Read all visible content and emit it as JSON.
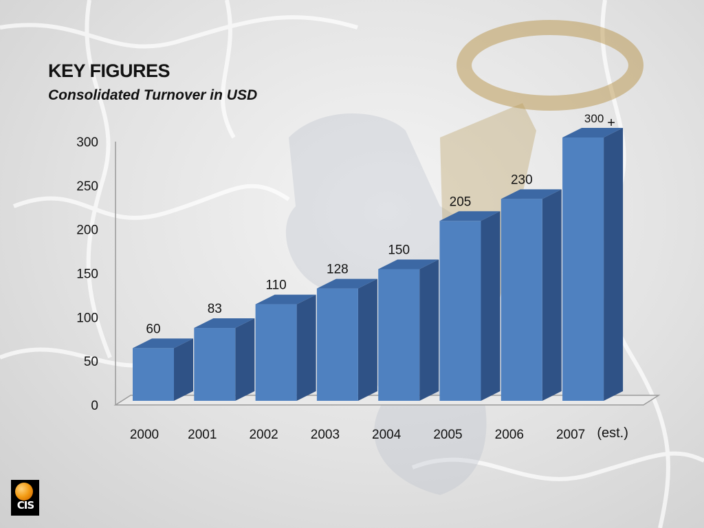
{
  "slide": {
    "title": "KEY FIGURES",
    "subtitle": "Consolidated Turnover in USD",
    "logo_text": "CIS"
  },
  "colors": {
    "bar_front": "#4f81c0",
    "bar_side": "#2f5286",
    "bar_top": "#3c68a4",
    "axis": "#9a9a9a",
    "text": "#111111"
  },
  "chart_data": {
    "type": "bar",
    "categories": [
      "2000",
      "2001",
      "2002",
      "2003",
      "2004",
      "2005",
      "2006",
      "2007"
    ],
    "values": [
      60,
      83,
      110,
      128,
      150,
      205,
      230,
      300
    ],
    "data_labels": [
      "60",
      "83",
      "110",
      "128",
      "150",
      "205",
      "230",
      "300"
    ],
    "last_label_suffix": "+",
    "last_category_note": "(est.)",
    "y_ticks": [
      0,
      50,
      100,
      150,
      200,
      250,
      300
    ],
    "ylim": [
      0,
      300
    ],
    "title": "Consolidated Turnover in USD",
    "xlabel": "",
    "ylabel": "",
    "grid": false,
    "legend": "none",
    "style": "3d"
  }
}
